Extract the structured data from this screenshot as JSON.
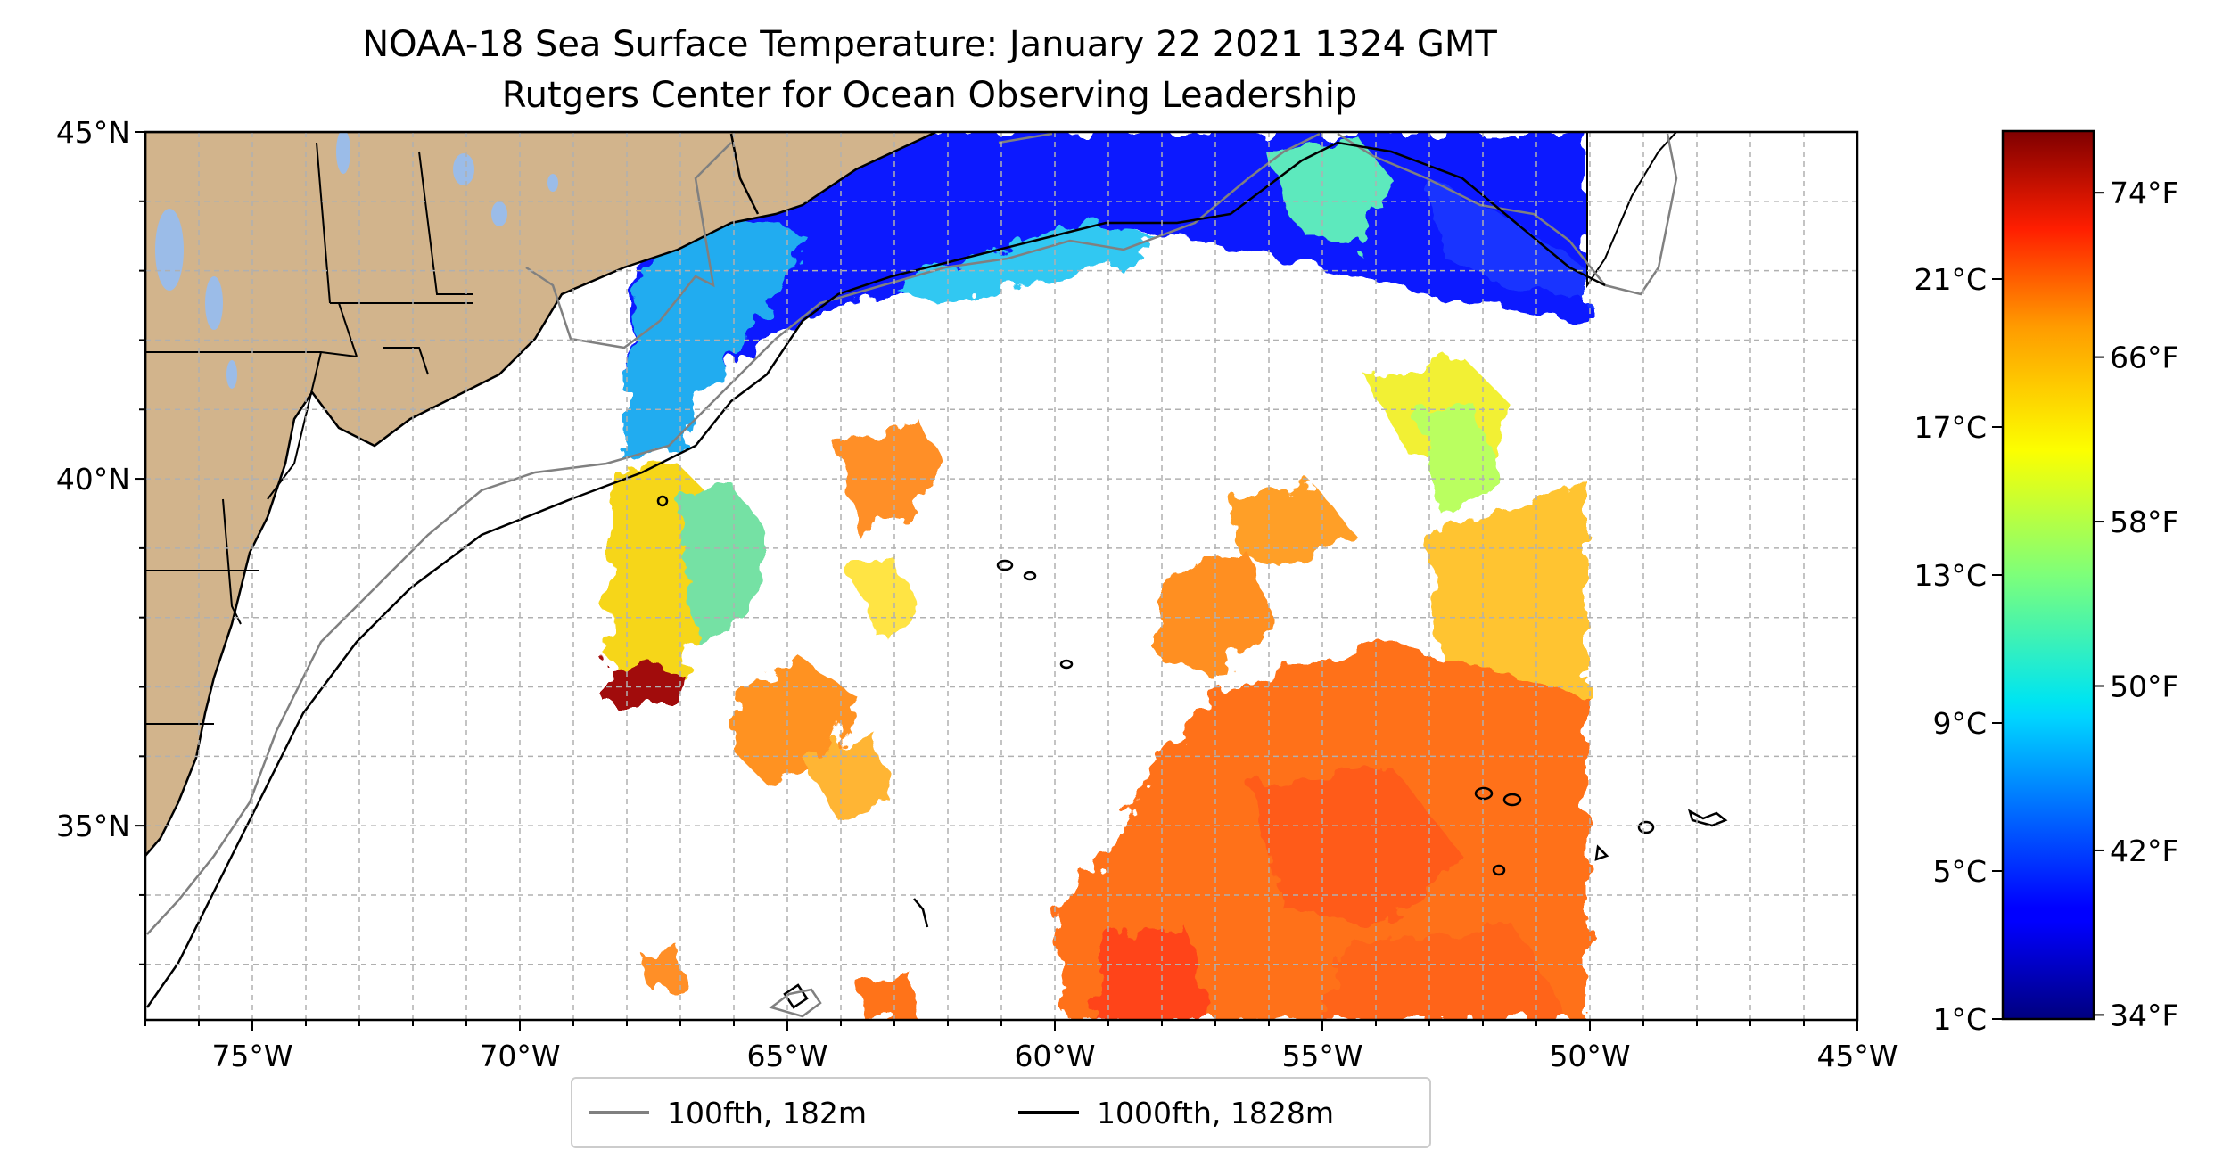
{
  "title": {
    "line1": "NOAA-18 Sea Surface Temperature: January 22 2021 1324 GMT",
    "line2": "Rutgers Center for Ocean Observing Leadership"
  },
  "map": {
    "lon_range": [
      -77,
      -45
    ],
    "lat_range": [
      32.2,
      45
    ],
    "lon_ticks": [
      {
        "value": -75,
        "label": "75°W"
      },
      {
        "value": -70,
        "label": "70°W"
      },
      {
        "value": -65,
        "label": "65°W"
      },
      {
        "value": -60,
        "label": "60°W"
      },
      {
        "value": -55,
        "label": "55°W"
      },
      {
        "value": -50,
        "label": "50°W"
      },
      {
        "value": -45,
        "label": "45°W"
      }
    ],
    "lat_ticks": [
      {
        "value": 35,
        "label": "35°N"
      },
      {
        "value": 40,
        "label": "40°N"
      },
      {
        "value": 45,
        "label": "45°N"
      }
    ],
    "gridlines": "dashed, every 1 degree",
    "colors": {
      "land": "#d2b48c",
      "lakes": "#9bbce8",
      "ocean": "#ffffff",
      "grid": "#b0b0b0"
    }
  },
  "legend": {
    "items": [
      {
        "label": "100fth, 182m",
        "color": "#808080"
      },
      {
        "label": "1000fth, 1828m",
        "color": "#000000"
      }
    ]
  },
  "colorbar": {
    "colormap": "jet",
    "range_f": [
      33.8,
      77
    ],
    "fahrenheit_ticks": [
      {
        "value": 34,
        "label": "34°F"
      },
      {
        "value": 42,
        "label": "42°F"
      },
      {
        "value": 50,
        "label": "50°F"
      },
      {
        "value": 58,
        "label": "58°F"
      },
      {
        "value": 66,
        "label": "66°F"
      },
      {
        "value": 74,
        "label": "74°F"
      }
    ],
    "celsius_ticks": [
      {
        "value": 1,
        "label": "1°C"
      },
      {
        "value": 5,
        "label": "5°C"
      },
      {
        "value": 9,
        "label": "9°C"
      },
      {
        "value": 13,
        "label": "13°C"
      },
      {
        "value": 17,
        "label": "17°C"
      },
      {
        "value": 21,
        "label": "21°C"
      }
    ]
  }
}
